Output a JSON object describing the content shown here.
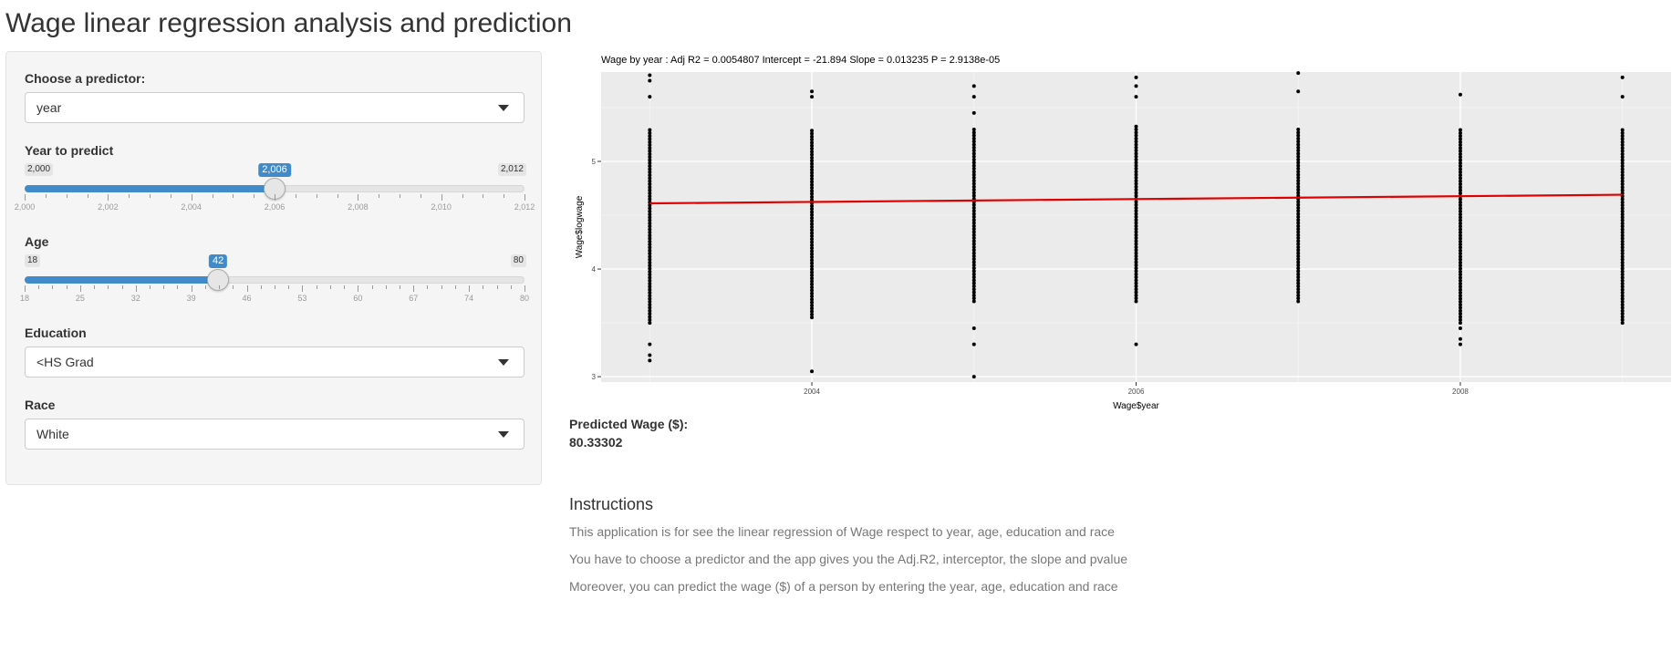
{
  "app": {
    "title": "Wage linear regression analysis and prediction"
  },
  "sidebar": {
    "predictor": {
      "label": "Choose a predictor:",
      "value": "year"
    },
    "year_slider": {
      "label": "Year to predict",
      "min": 2000,
      "max": 2012,
      "value": 2006,
      "min_label": "2,000",
      "max_label": "2,012",
      "value_label": "2,006",
      "ticks": [
        "2,000",
        "2,002",
        "2,004",
        "2,006",
        "2,008",
        "2,010",
        "2,012"
      ]
    },
    "age_slider": {
      "label": "Age",
      "min": 18,
      "max": 80,
      "value": 42,
      "min_label": "18",
      "max_label": "80",
      "value_label": "42",
      "ticks": [
        "18",
        "25",
        "32",
        "39",
        "46",
        "53",
        "60",
        "67",
        "74",
        "80"
      ]
    },
    "education": {
      "label": "Education",
      "value": "<HS Grad"
    },
    "race": {
      "label": "Race",
      "value": "White"
    }
  },
  "main": {
    "predicted_label": "Predicted Wage ($):",
    "predicted_value": "80.33302",
    "instructions": {
      "title": "Instructions",
      "lines": [
        "This application is for see the linear regression of Wage respect to year, age, education and race",
        "You have to choose a predictor and the app gives you the Adj.R2, interceptor, the slope and pvalue",
        "Moreover, you can predict the wage ($) of a person by entering the year, age, education and race"
      ]
    }
  },
  "colors": {
    "accent": "#428bca",
    "panel_bg": "#ebebeb",
    "regression_line": "#e00000",
    "points": "#000000"
  },
  "chart_data": {
    "type": "scatter",
    "title": "Wage by year : Adj R2 =  0.0054807 Intercept = -21.894  Slope = 0.013235  P = 2.9138e-05",
    "xlabel": "Wage$year",
    "ylabel": "Wage$logwage",
    "xlim": [
      2002.7,
      2009.3
    ],
    "ylim": [
      2.95,
      5.83
    ],
    "x_ticks": [
      "2004",
      "2006",
      "2008"
    ],
    "y_ticks": [
      "3",
      "4",
      "5"
    ],
    "grid": true,
    "points": {
      "x_values": [
        2003,
        2004,
        2005,
        2006,
        2007,
        2008,
        2009
      ],
      "dense_range": [
        [
          3.5,
          5.3
        ],
        [
          3.55,
          5.3
        ],
        [
          3.7,
          5.3
        ],
        [
          3.7,
          5.35
        ],
        [
          3.7,
          5.3
        ],
        [
          3.5,
          5.3
        ],
        [
          3.5,
          5.3
        ]
      ],
      "outliers": [
        [
          3.15,
          3.2,
          3.3,
          5.6,
          5.75,
          5.8
        ],
        [
          3.05,
          5.6,
          5.65
        ],
        [
          3.0,
          3.3,
          3.45,
          5.45,
          5.6,
          5.7
        ],
        [
          3.3,
          5.6,
          5.7,
          5.78
        ],
        [
          5.65,
          5.82
        ],
        [
          3.3,
          3.35,
          3.45,
          5.62
        ],
        [
          5.6,
          5.78
        ]
      ]
    },
    "regression": {
      "x": [
        2003,
        2009
      ],
      "y": [
        4.61,
        4.69
      ]
    }
  }
}
